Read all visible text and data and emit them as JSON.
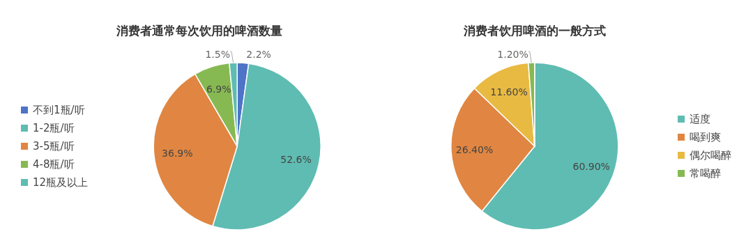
{
  "chart_data": [
    {
      "type": "pie",
      "title": "消费者通常每次饮用的啤酒数量",
      "categories": [
        "不到1瓶/听",
        "1-2瓶/听",
        "3-5瓶/听",
        "4-8瓶/听",
        "12瓶及以上"
      ],
      "values": [
        2.2,
        52.6,
        36.9,
        6.9,
        1.5
      ],
      "colors": [
        "#4e73c7",
        "#5fbcb2",
        "#e08642",
        "#87b952",
        "#5fbcb2"
      ],
      "value_labels": [
        "2.2%",
        "52.6%",
        "36.9%",
        "6.9%",
        "1.5%"
      ],
      "legend": "left"
    },
    {
      "type": "pie",
      "title": "消费者饮用啤酒的一般方式",
      "categories": [
        "适度",
        "喝到爽",
        "偶尔喝醉",
        "常喝醉"
      ],
      "values": [
        60.9,
        26.4,
        11.6,
        1.2
      ],
      "colors": [
        "#5fbcb2",
        "#e08642",
        "#e8ba41",
        "#87b952"
      ],
      "value_labels": [
        "60.90%",
        "26.40%",
        "11.60%",
        "1.20%"
      ],
      "legend": "right"
    }
  ]
}
